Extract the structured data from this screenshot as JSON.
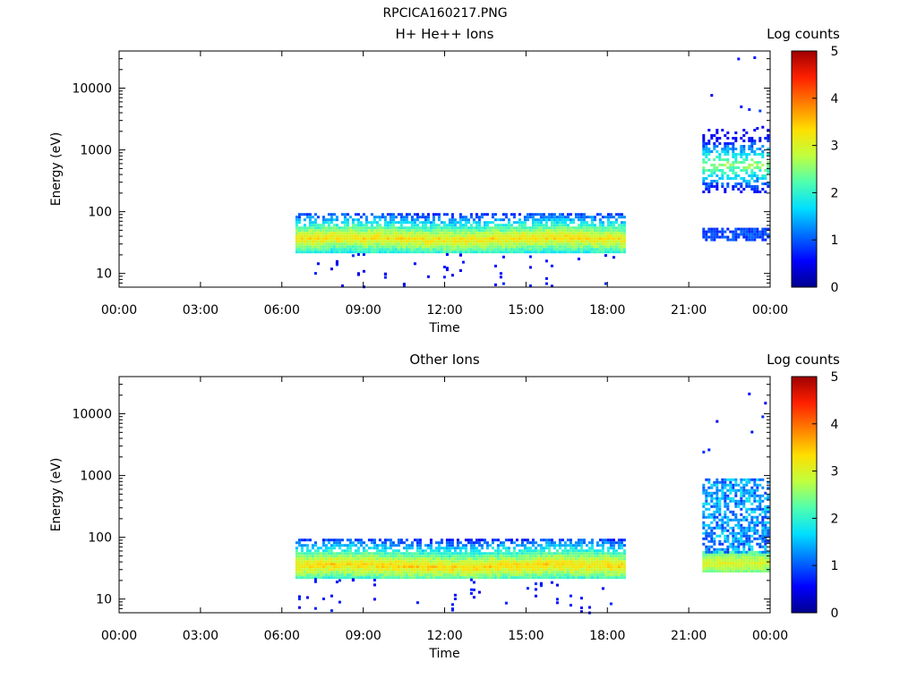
{
  "figure_title": "RPCICA160217.PNG",
  "colors": {
    "colormap": [
      "#00008f",
      "#0000ff",
      "#006fff",
      "#00dfff",
      "#4fffaf",
      "#bfff3f",
      "#ffdf00",
      "#ff7f00",
      "#ff1f00",
      "#9f0000"
    ],
    "axes": "#000000",
    "background": "#ffffff"
  },
  "chart_data": [
    {
      "type": "heatmap",
      "title": "H+ He++ Ions",
      "xlabel": "Time",
      "ylabel": "Energy (eV)",
      "x_ticks": [
        "00:00",
        "03:00",
        "06:00",
        "09:00",
        "12:00",
        "15:00",
        "18:00",
        "21:00",
        "00:00"
      ],
      "x_range_hours": [
        0,
        24
      ],
      "y_scale": "log",
      "y_range": [
        6,
        40000
      ],
      "y_ticks": [
        10,
        100,
        1000,
        10000
      ],
      "y_tick_labels": [
        "10",
        "100",
        "1000",
        "10000"
      ],
      "colorbar": {
        "label": "Log counts",
        "range": [
          0,
          5
        ],
        "ticks": [
          "0",
          "1",
          "2",
          "3",
          "4",
          "5"
        ]
      },
      "data_segments": [
        {
          "start": "06:30",
          "end": "18:35",
          "energy_range_eV": [
            22,
            95
          ],
          "peak_energy_eV": 38,
          "peak_log_counts": 3.3,
          "sparse_floor_eV": 6
        },
        {
          "start": "21:30",
          "end": "23:55",
          "lower_band_eV": [
            35,
            55
          ],
          "lower_band_log_counts": 0.9,
          "upper_band_eV": [
            200,
            2200
          ],
          "upper_peak_eV": 600,
          "upper_peak_log_counts": 2.6,
          "sparse_max_eV": 40000
        }
      ]
    },
    {
      "type": "heatmap",
      "title": "Other Ions",
      "xlabel": "Time",
      "ylabel": "Energy (eV)",
      "x_ticks": [
        "00:00",
        "03:00",
        "06:00",
        "09:00",
        "12:00",
        "15:00",
        "18:00",
        "21:00",
        "00:00"
      ],
      "x_range_hours": [
        0,
        24
      ],
      "y_scale": "log",
      "y_range": [
        6,
        40000
      ],
      "y_ticks": [
        10,
        100,
        1000,
        10000
      ],
      "y_tick_labels": [
        "10",
        "100",
        "1000",
        "10000"
      ],
      "colorbar": {
        "label": "Log counts",
        "range": [
          0,
          5
        ],
        "ticks": [
          "0",
          "1",
          "2",
          "3",
          "4",
          "5"
        ]
      },
      "data_segments": [
        {
          "start": "06:30",
          "end": "18:35",
          "energy_range_eV": [
            22,
            95
          ],
          "peak_energy_eV": 36,
          "peak_log_counts": 3.4,
          "sparse_floor_eV": 6
        },
        {
          "start": "21:30",
          "end": "23:55",
          "band_eV": [
            27,
            60
          ],
          "band_log_counts": 3.0,
          "upper_band_eV": [
            60,
            900
          ],
          "upper_log_counts": 1.3,
          "sparse_max_eV": 30000
        }
      ]
    }
  ]
}
